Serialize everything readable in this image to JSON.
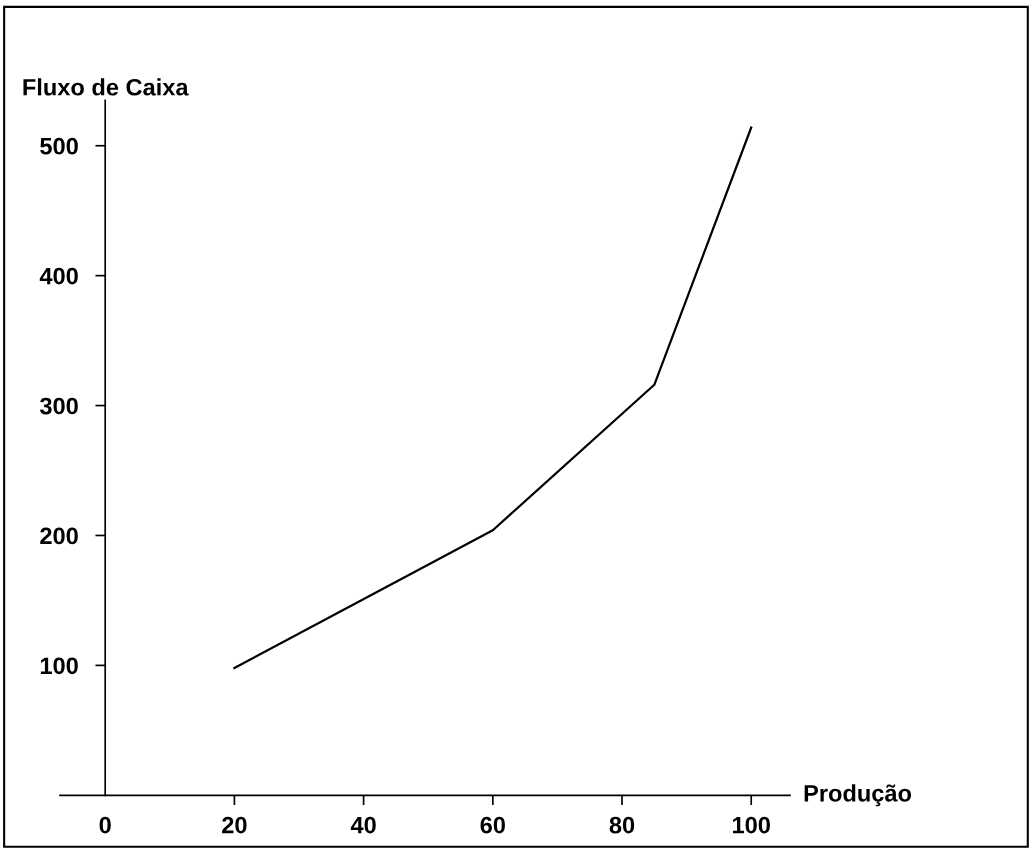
{
  "chart_data": {
    "type": "line",
    "xlabel": "Produção",
    "ylabel": "Fluxo de Caixa",
    "x": [
      20,
      60,
      85,
      100
    ],
    "series": [
      {
        "color": "#000000",
        "values": [
          98,
          204,
          316,
          514
        ]
      }
    ],
    "xlim": [
      -7,
      106
    ],
    "ylim": [
      0,
      535
    ],
    "xticks": [
      0,
      20,
      40,
      60,
      80,
      100
    ],
    "yticks": [
      100,
      200,
      300,
      400,
      500
    ],
    "grid": false,
    "legend": false,
    "marker": "none",
    "line_style": "solid"
  }
}
